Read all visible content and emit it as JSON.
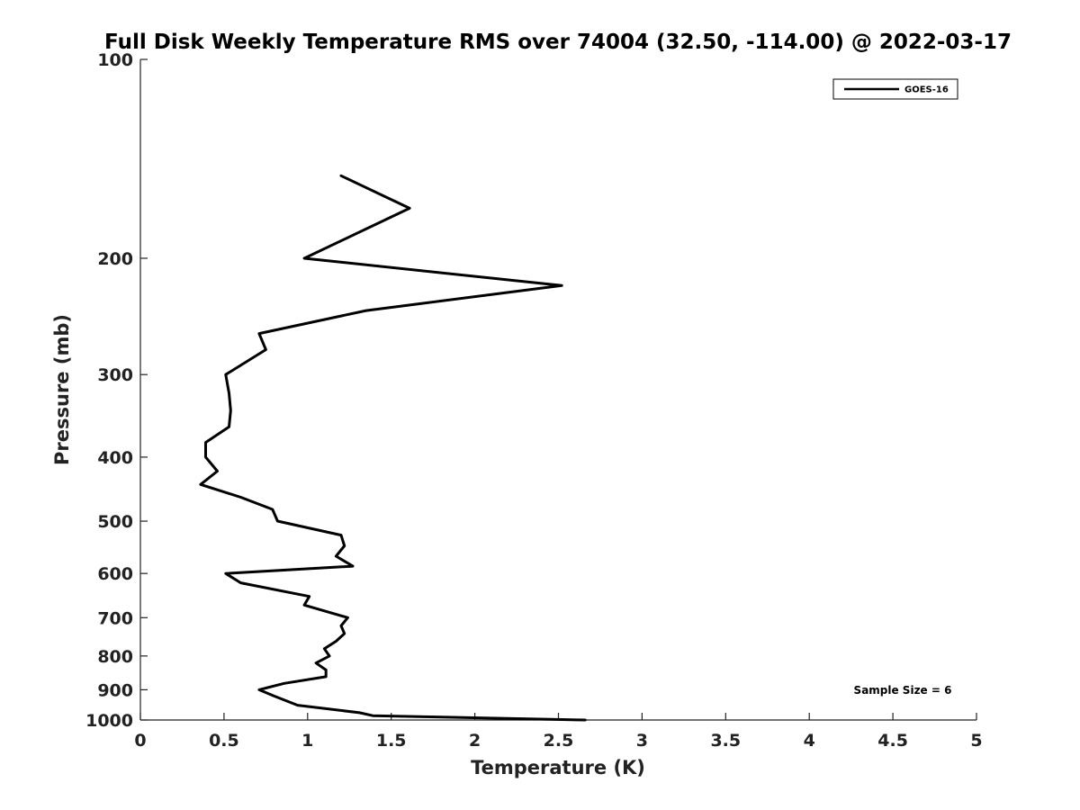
{
  "chart_data": {
    "type": "line",
    "title": "Full Disk Weekly Temperature RMS over 74004 (32.50, -114.00) @ 2022-03-17",
    "xlabel": "Temperature (K)",
    "ylabel": "Pressure (mb)",
    "xlim": [
      0,
      5
    ],
    "ylim": [
      100,
      1000
    ],
    "y_scale": "log",
    "y_reversed": true,
    "grid": false,
    "legend_position": "top-right",
    "x_ticks": [
      "0",
      "0.5",
      "1",
      "1.5",
      "2",
      "2.5",
      "3",
      "3.5",
      "4",
      "4.5",
      "5"
    ],
    "y_ticks": [
      "100",
      "200",
      "300",
      "400",
      "500",
      "600",
      "700",
      "800",
      "900",
      "1000"
    ],
    "annotation": "Sample Size = 6",
    "series": [
      {
        "name": "GOES-16",
        "color": "#000000",
        "points": [
          [
            1.2,
            150
          ],
          [
            1.61,
            168
          ],
          [
            0.98,
            200
          ],
          [
            2.52,
            220
          ],
          [
            1.35,
            240
          ],
          [
            0.71,
            260
          ],
          [
            0.75,
            275
          ],
          [
            0.51,
            300
          ],
          [
            0.53,
            320
          ],
          [
            0.54,
            340
          ],
          [
            0.53,
            360
          ],
          [
            0.39,
            380
          ],
          [
            0.39,
            400
          ],
          [
            0.46,
            420
          ],
          [
            0.36,
            440
          ],
          [
            0.6,
            460
          ],
          [
            0.79,
            480
          ],
          [
            0.82,
            500
          ],
          [
            1.2,
            525
          ],
          [
            1.22,
            545
          ],
          [
            1.17,
            565
          ],
          [
            1.27,
            585
          ],
          [
            0.51,
            600
          ],
          [
            0.6,
            620
          ],
          [
            1.01,
            650
          ],
          [
            0.98,
            670
          ],
          [
            1.24,
            700
          ],
          [
            1.2,
            720
          ],
          [
            1.22,
            740
          ],
          [
            1.17,
            760
          ],
          [
            1.1,
            780
          ],
          [
            1.13,
            800
          ],
          [
            1.05,
            820
          ],
          [
            1.11,
            840
          ],
          [
            1.11,
            860
          ],
          [
            0.86,
            880
          ],
          [
            0.71,
            900
          ],
          [
            0.8,
            920
          ],
          [
            0.94,
            950
          ],
          [
            1.31,
            975
          ],
          [
            1.39,
            985
          ],
          [
            2.66,
            1000
          ]
        ]
      }
    ]
  }
}
